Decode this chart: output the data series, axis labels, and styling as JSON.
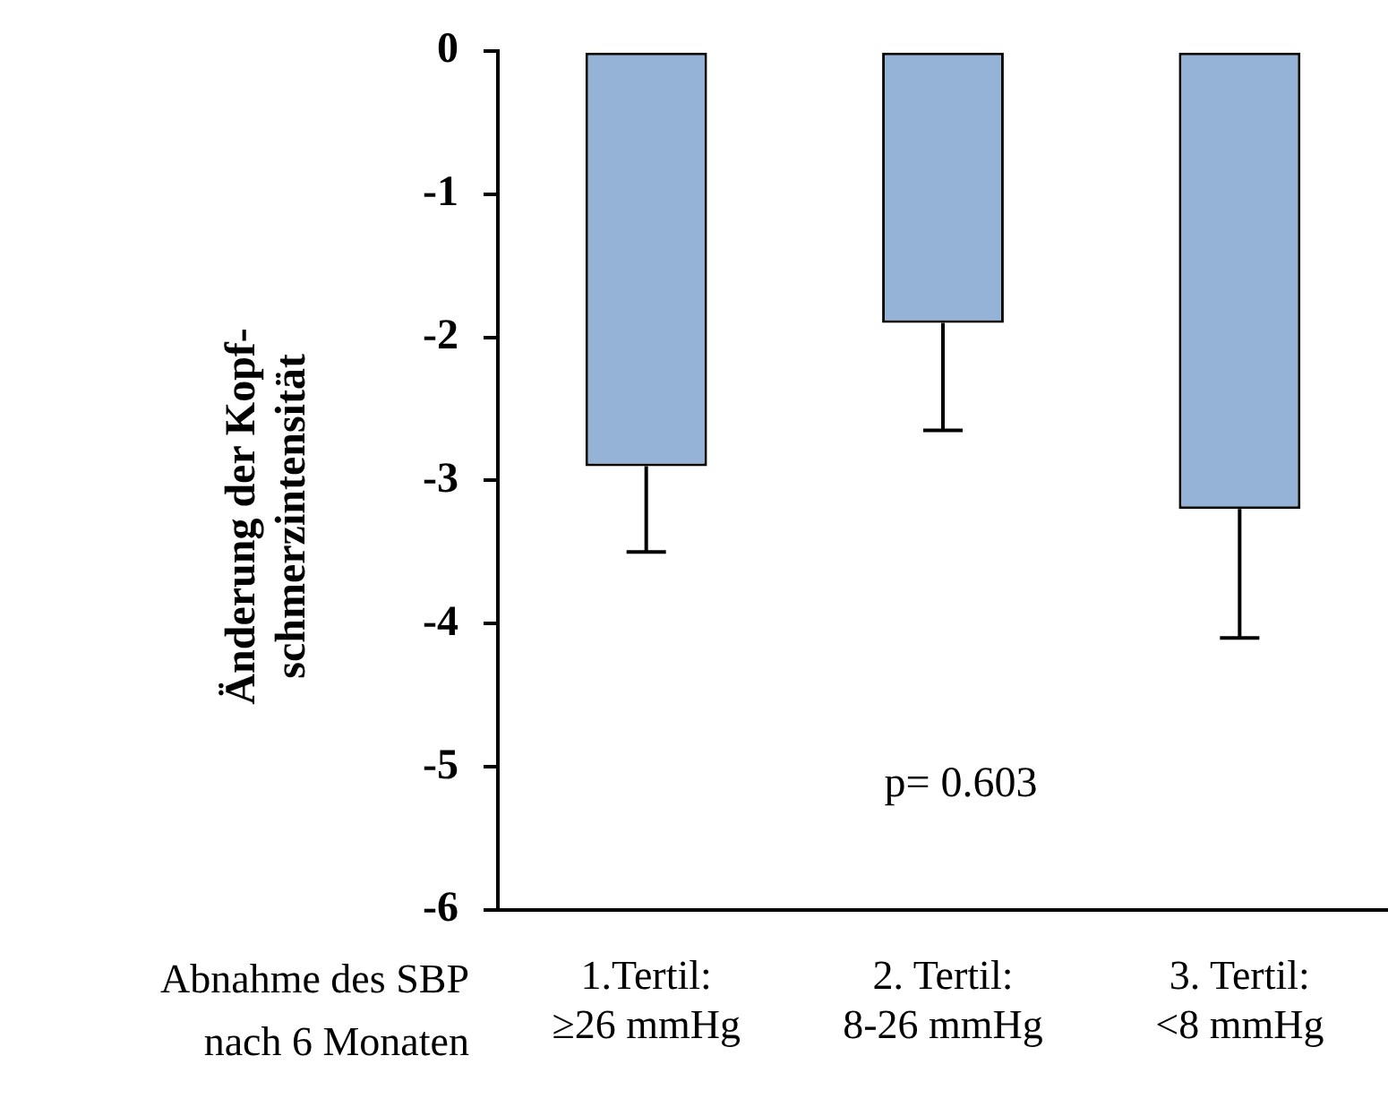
{
  "chart_data": {
    "type": "bar",
    "categories": [
      "1.Tertil:\n≥26 mmHg",
      "2. Tertil:\n8-26 mmHg",
      "3. Tertil:\n<8 mmHg"
    ],
    "values": [
      -2.9,
      -1.9,
      -3.2
    ],
    "errors": [
      [
        -3.5,
        -2.9
      ],
      [
        -2.65,
        -1.9
      ],
      [
        -4.1,
        -3.2
      ]
    ],
    "color": "#95b3d7",
    "xlabel": "Abnahme des SBP\nnach 6 Monaten",
    "ylabel": "Änderung der Kopf-\nschmerzintensität",
    "ylim": [
      -6,
      0
    ],
    "yticks": [
      -6,
      -5,
      -4,
      -3,
      -2,
      -1,
      0
    ],
    "annotations": [
      "p= 0.603"
    ],
    "grid": false,
    "legend": false
  }
}
